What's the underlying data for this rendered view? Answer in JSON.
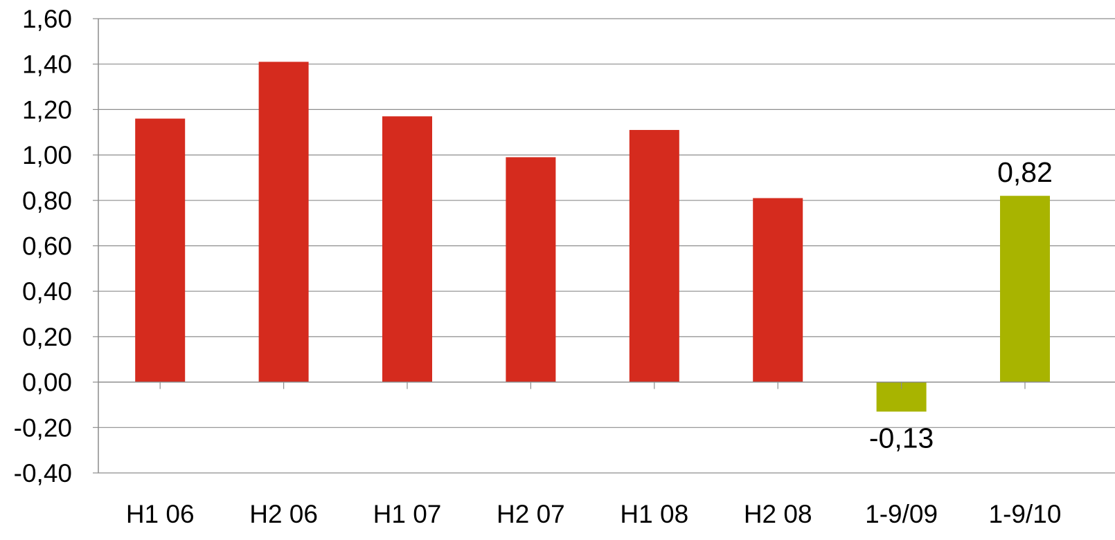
{
  "chart_data": {
    "type": "bar",
    "categories": [
      "H1 06",
      "H2 06",
      "H1 07",
      "H2 07",
      "H1 08",
      "H2 08",
      "1-9/09",
      "1-9/10"
    ],
    "values": [
      1.16,
      1.41,
      1.17,
      0.99,
      1.11,
      0.81,
      -0.13,
      0.82
    ],
    "bar_colors": [
      "#d52b1e",
      "#d52b1e",
      "#d52b1e",
      "#d52b1e",
      "#d52b1e",
      "#d52b1e",
      "#a8b400",
      "#a8b400"
    ],
    "data_labels": [
      {
        "index": 6,
        "text": "-0,13"
      },
      {
        "index": 7,
        "text": "0,82"
      }
    ],
    "y_ticks": [
      "1,60",
      "1,40",
      "1,20",
      "1,00",
      "0,80",
      "0,60",
      "0,40",
      "0,20",
      "0,00",
      "-0,20",
      "-0,40"
    ],
    "ylim": [
      -0.4,
      1.6
    ],
    "y_step": 0.2,
    "grid": true,
    "legend": false,
    "title": "",
    "xlabel": "",
    "ylabel": ""
  }
}
